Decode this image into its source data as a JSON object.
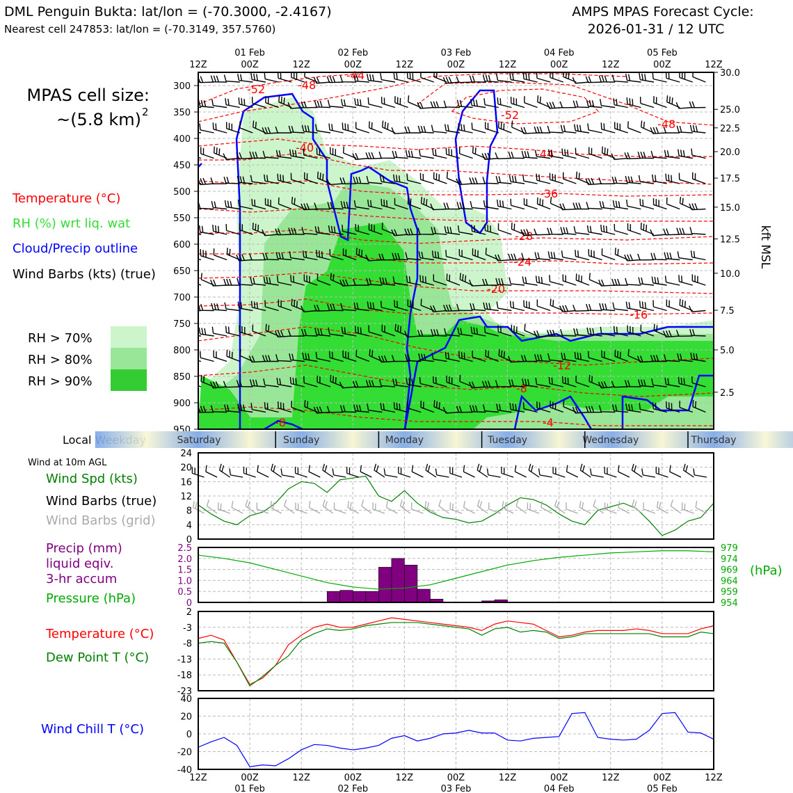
{
  "header": {
    "title_line1": "DML Penguin Bukta: lat/lon = (-70.3000, -2.4167)",
    "title_line2": "Nearest cell 247853: lat/lon = (-70.3149, 357.5760)",
    "cycle_line1": "AMPS MPAS Forecast Cycle:",
    "cycle_line2": "2026-01-31 / 12 UTC"
  },
  "time_axis": {
    "hour_labels": [
      "12Z",
      "00Z",
      "12Z",
      "00Z",
      "12Z",
      "00Z",
      "12Z",
      "00Z",
      "12Z",
      "00Z",
      "12Z"
    ],
    "date_labels": [
      "01 Feb",
      "02 Feb",
      "03 Feb",
      "04 Feb",
      "05 Feb"
    ],
    "date_label_hour_index": [
      1,
      3,
      5,
      7,
      9
    ]
  },
  "weekday_bar": {
    "label": "Local Weekday",
    "days": [
      "Saturday",
      "Sunday",
      "Monday",
      "Tuesday",
      "Wednesday",
      "Thursday"
    ],
    "colors": {
      "day": "#f7f6d4",
      "night": "#7aa6e8"
    }
  },
  "legend": {
    "cell_size_line1": "MPAS cell size:",
    "cell_size_line2": "~(5.8 km)",
    "cell_size_sup": "2",
    "temperature": "Temperature (°C)",
    "rh": "RH (%) wrt liq. wat",
    "cloud": "Cloud/Precip outline",
    "wind": "Wind Barbs (kts) (true)",
    "rh70": "RH > 70%",
    "rh80": "RH > 80%",
    "rh90": "RH > 90%",
    "colors": {
      "temperature": "#ff0000",
      "rh": "#33dd33",
      "cloud": "#0000ff",
      "wind": "#000000",
      "rh70": "#ccf5cc",
      "rh80": "#99e699",
      "rh90": "#33cc33"
    }
  },
  "panel_labels": {
    "wind_title": "Wind at 10m AGL",
    "wind_speed": "Wind Spd (kts)",
    "wind_true": "Wind Barbs (true)",
    "wind_grid": "Wind Barbs (grid)",
    "precip_1": "Precip (mm)",
    "precip_2": "liquid eqiv.",
    "precip_3": "3-hr accum",
    "pressure": "Pressure (hPa)",
    "hpa": "(hPa)",
    "temperature": "Temperature (°C)",
    "dewpoint": "Dew Point T (°C)",
    "windchill": "Wind Chill T (°C)",
    "kft": "kft MSL",
    "colors": {
      "wind_speed": "#008000",
      "wind_grid": "#aaaaaa",
      "precip": "#800080",
      "pressure": "#00aa00",
      "temperature": "#ff0000",
      "dewpoint": "#008000",
      "windchill": "#0000ff"
    }
  },
  "chart_data": [
    {
      "type": "heatmap",
      "name": "time-height cross-section",
      "x": "forecast time (3-hourly, 2026-01-31 12Z to 2026-02-05 12Z)",
      "y_left_ticks": [
        "300",
        "350",
        "400",
        "450",
        "500",
        "550",
        "600",
        "650",
        "700",
        "750",
        "800",
        "850",
        "900",
        "950"
      ],
      "y_right_ticks": [
        "30.0",
        "25.0",
        "22.5",
        "20.0",
        "17.5",
        "15.0",
        "12.5",
        "10.0",
        "7.5",
        "5.0",
        "2.5"
      ],
      "ylim_hpa": [
        950,
        275
      ],
      "temperature_contour_labels": [
        "-52",
        "-48",
        "-44",
        "-40",
        "-52",
        "-48",
        "-44",
        "-36",
        "-28",
        "-24",
        "-20",
        "-16",
        "-12",
        "-8",
        "-8",
        "-4"
      ]
    },
    {
      "type": "line",
      "name": "wind speed 10m",
      "ylabel": "",
      "ylim": [
        0,
        24
      ],
      "yticks": [
        "24",
        "20",
        "16",
        "12",
        "8",
        "4",
        "0"
      ],
      "x_hours": [
        0,
        3,
        6,
        9,
        12,
        15,
        18,
        21,
        24,
        27,
        30,
        33,
        36,
        39,
        42,
        45,
        48,
        51,
        54,
        57,
        60,
        63,
        66,
        69,
        72,
        75,
        78,
        81,
        84,
        87,
        90,
        93,
        96,
        99,
        102,
        105,
        108,
        111,
        114,
        117,
        120
      ],
      "values": [
        9.5,
        7,
        5,
        4,
        6.5,
        7.5,
        10,
        14,
        16,
        15.5,
        13,
        16.5,
        17,
        17.5,
        12,
        10.5,
        13.5,
        10,
        7.5,
        6,
        5.5,
        4.5,
        5,
        7,
        9.5,
        11.5,
        11,
        9.5,
        7,
        5,
        4,
        8,
        9,
        10,
        8.5,
        5,
        1,
        2.5,
        5,
        6,
        10
      ]
    },
    {
      "type": "bar",
      "name": "precip 3-hr accum",
      "ylim": [
        0,
        2.5
      ],
      "yticks": [
        "2.5",
        "2.0",
        "1.5",
        "1.0",
        "0.5",
        "0"
      ],
      "bars": [
        {
          "start_hour": 30,
          "value": 0.5
        },
        {
          "start_hour": 33,
          "value": 0.55
        },
        {
          "start_hour": 36,
          "value": 0.5
        },
        {
          "start_hour": 39,
          "value": 0.5
        },
        {
          "start_hour": 42,
          "value": 1.6
        },
        {
          "start_hour": 45,
          "value": 2.0
        },
        {
          "start_hour": 48,
          "value": 1.7
        },
        {
          "start_hour": 51,
          "value": 0.6
        },
        {
          "start_hour": 54,
          "value": 0.15
        },
        {
          "start_hour": 66,
          "value": 0.07
        },
        {
          "start_hour": 69,
          "value": 0.12
        }
      ]
    },
    {
      "type": "line",
      "name": "pressure",
      "ylim": [
        954,
        979
      ],
      "yticks": [
        "979",
        "974",
        "969",
        "964",
        "959",
        "954"
      ],
      "x_hours": [
        0,
        6,
        12,
        18,
        24,
        30,
        36,
        42,
        48,
        54,
        60,
        66,
        72,
        78,
        84,
        90,
        96,
        102,
        108,
        114,
        120
      ],
      "values": [
        975.5,
        974,
        972,
        969,
        966,
        963,
        961,
        960,
        960.5,
        962,
        965,
        968,
        971,
        973,
        974.5,
        975.5,
        976.5,
        977,
        977.5,
        977.5,
        977
      ]
    },
    {
      "type": "line",
      "name": "temperature and dew point",
      "ylim": [
        -23,
        2
      ],
      "yticks": [
        "2",
        "-3",
        "-8",
        "-13",
        "-18",
        "-23"
      ],
      "x_hours": [
        0,
        3,
        6,
        9,
        12,
        15,
        18,
        21,
        24,
        27,
        30,
        33,
        36,
        39,
        42,
        45,
        48,
        51,
        54,
        57,
        60,
        63,
        66,
        69,
        72,
        75,
        78,
        81,
        84,
        87,
        90,
        93,
        96,
        99,
        102,
        105,
        108,
        111,
        114,
        117,
        120
      ],
      "series": [
        {
          "name": "Temperature",
          "values": [
            -6.5,
            -5.5,
            -7,
            -14,
            -21,
            -19,
            -15,
            -8.5,
            -5.5,
            -3,
            -2,
            -3,
            -3,
            -2,
            -1,
            0,
            -0.5,
            -1,
            -1.5,
            -2,
            -2.5,
            -3,
            -4,
            -2,
            -1,
            -1.5,
            -2,
            -4,
            -6,
            -5.5,
            -4.5,
            -4,
            -4,
            -4,
            -3.5,
            -4,
            -5,
            -5,
            -5,
            -3.5,
            -2.5
          ]
        },
        {
          "name": "Dew Point",
          "values": [
            -8,
            -7.5,
            -8,
            -14,
            -21.5,
            -18.5,
            -15,
            -12,
            -7,
            -5,
            -3.5,
            -4,
            -3.5,
            -2.5,
            -2,
            -1.5,
            -1.5,
            -1.5,
            -2,
            -2.5,
            -3,
            -3.5,
            -5.5,
            -3.5,
            -3,
            -4.5,
            -4,
            -4.5,
            -6.5,
            -6,
            -5,
            -5,
            -5,
            -5,
            -5,
            -5,
            -6,
            -6,
            -6,
            -4.5,
            -5
          ]
        }
      ]
    },
    {
      "type": "line",
      "name": "wind chill",
      "ylim": [
        -40,
        40
      ],
      "yticks": [
        "40",
        "20",
        "0",
        "-20",
        "-40"
      ],
      "x_hours": [
        0,
        3,
        6,
        9,
        12,
        15,
        18,
        21,
        24,
        27,
        30,
        33,
        36,
        39,
        42,
        45,
        48,
        51,
        54,
        57,
        60,
        63,
        66,
        69,
        72,
        75,
        78,
        81,
        84,
        87,
        90,
        93,
        96,
        99,
        102,
        105,
        108,
        111,
        114,
        117,
        120
      ],
      "values": [
        -15,
        -9,
        -4,
        -13,
        -37,
        -35,
        -36,
        -28,
        -18,
        -12,
        -13,
        -16,
        -18,
        -16,
        -13,
        -5,
        -2,
        -8,
        -5,
        0,
        1,
        4,
        1,
        1,
        -7,
        -8,
        -5,
        -4,
        -3,
        23,
        24,
        -4,
        -6,
        -7,
        -6,
        4,
        23,
        24,
        2,
        1,
        -6
      ]
    }
  ]
}
